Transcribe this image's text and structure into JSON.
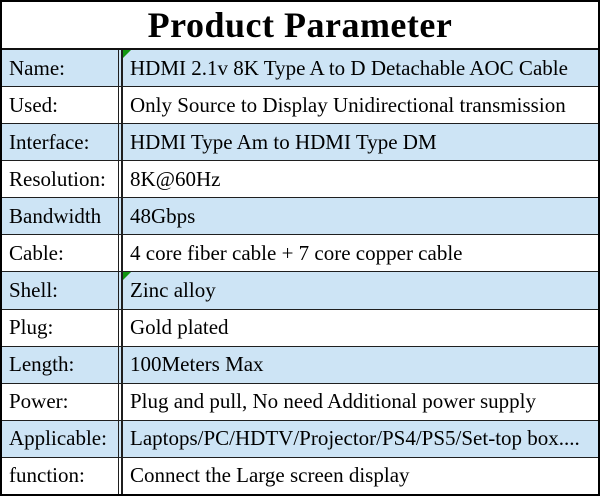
{
  "title": "Product Parameter",
  "colors": {
    "row_shade": "#cde4f5",
    "border": "#1f1f1f",
    "marker_green": "#129612",
    "background": "#ffffff",
    "text": "#000000"
  },
  "icons": {
    "cell_flag": "green-corner-triangle-icon"
  },
  "rows": [
    {
      "label": "Name:",
      "value": "HDMI 2.1v 8K Type A to D Detachable AOC Cable",
      "shaded": true,
      "marker": true
    },
    {
      "label": "Used:",
      "value": "Only Source to Display Unidirectional transmission",
      "shaded": false,
      "marker": false
    },
    {
      "label": "Interface:",
      "value": "HDMI Type Am to HDMI Type DM",
      "shaded": true,
      "marker": false
    },
    {
      "label": "Resolution:",
      "value": "8K@60Hz",
      "shaded": false,
      "marker": false
    },
    {
      "label": "Bandwidth",
      "value": "48Gbps",
      "shaded": true,
      "marker": false
    },
    {
      "label": "Cable:",
      "value": "4 core fiber cable + 7 core copper cable",
      "shaded": false,
      "marker": false
    },
    {
      "label": "Shell:",
      "value": "Zinc alloy",
      "shaded": true,
      "marker": true
    },
    {
      "label": "Plug:",
      "value": "Gold plated",
      "shaded": false,
      "marker": false
    },
    {
      "label": "Length:",
      "value": "100Meters Max",
      "shaded": true,
      "marker": false
    },
    {
      "label": "Power:",
      "value": "Plug and pull, No need Additional power supply",
      "shaded": false,
      "marker": false
    },
    {
      "label": "Applicable:",
      "value": "Laptops/PC/HDTV/Projector/PS4/PS5/Set-top box....",
      "shaded": true,
      "marker": false
    },
    {
      "label": "function:",
      "value": "Connect the Large screen display",
      "shaded": false,
      "marker": false
    }
  ]
}
